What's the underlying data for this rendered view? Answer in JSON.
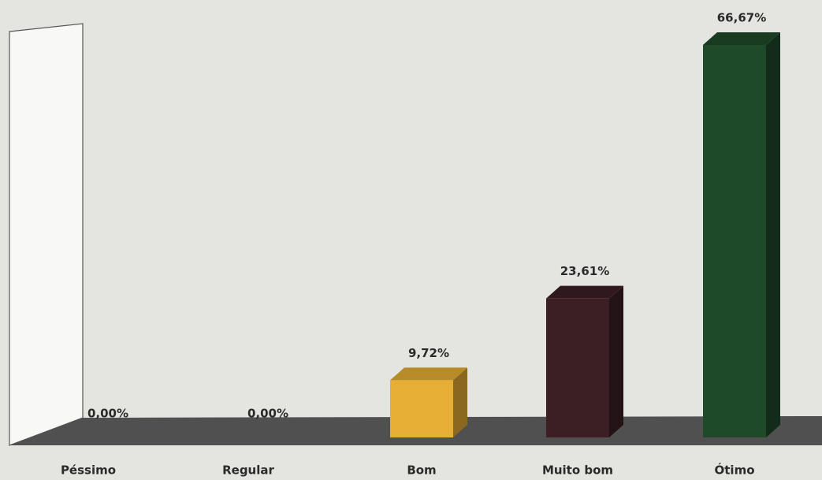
{
  "chart_data": {
    "type": "bar",
    "categories": [
      "Péssimo",
      "Regular",
      "Bom",
      "Muito bom",
      "Ótimo"
    ],
    "values": [
      0,
      0,
      9.72,
      23.61,
      66.67
    ],
    "value_labels": [
      "0,00%",
      "0,00%",
      "9,72%",
      "23,61%",
      "66,67%"
    ],
    "colors": [
      "#ffffff",
      "#ffffff",
      "#e6ae34",
      "#3c1f25",
      "#1f4a2a"
    ]
  }
}
